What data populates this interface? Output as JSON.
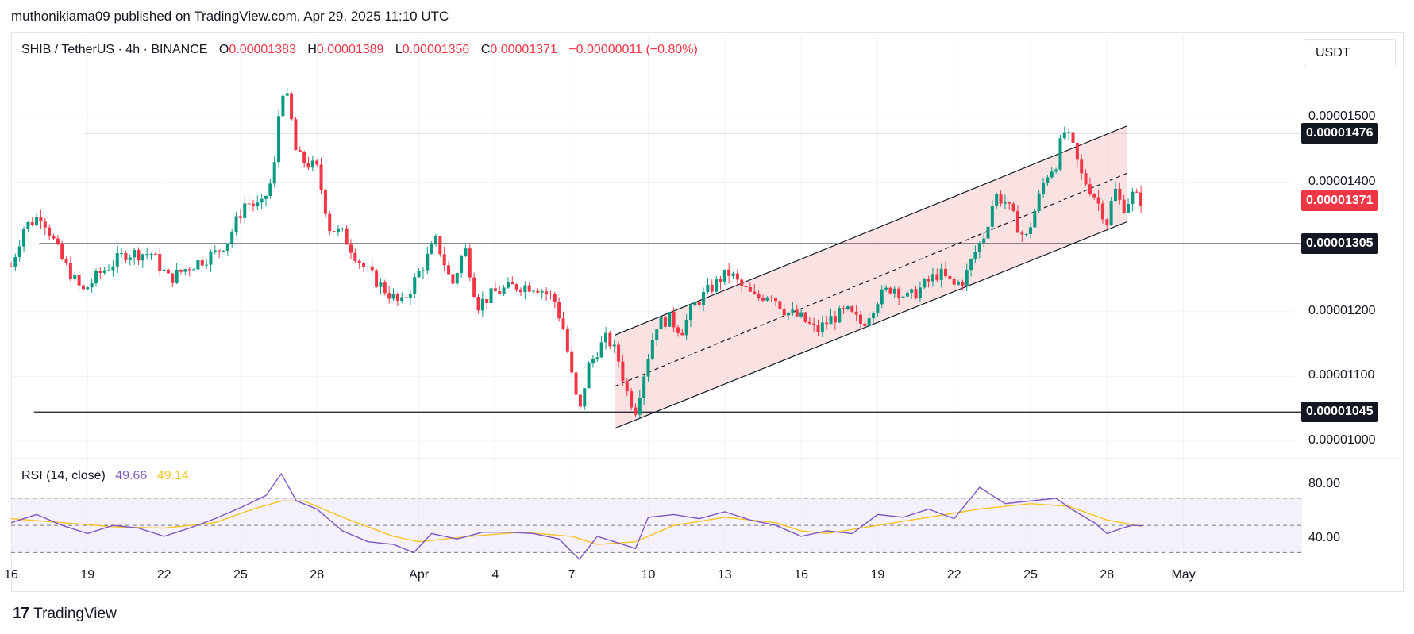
{
  "publisher": "muthonikiama09 published on TradingView.com, Apr 29, 2025 11:10 UTC",
  "legend": {
    "symbol": "SHIB / TetherUS · 4h · BINANCE",
    "open_key": "O",
    "open": "0.00001383",
    "high_key": "H",
    "high": "0.00001389",
    "low_key": "L",
    "low": "0.00001356",
    "close_key": "C",
    "close": "0.00001371",
    "change": "−0.00000011 (−0.80%)"
  },
  "currency": "USDT",
  "rsi_legend": {
    "label": "RSI (14, close)",
    "rsi": "49.66",
    "ma": "49.14"
  },
  "brand": {
    "logo": "17",
    "name": "TradingView"
  },
  "colors": {
    "up": "#089981",
    "down": "#f23645",
    "channel": "#f8d7d8",
    "rsi": "#7e57c2",
    "rsi_ma": "#f7c325",
    "rsi_band": "#ede7f6"
  },
  "chart_data": [
    {
      "type": "candlestick",
      "title": "SHIB / TetherUS · 4h · BINANCE",
      "x_tick_labels": [
        "16",
        "19",
        "22",
        "25",
        "28",
        "Apr",
        "4",
        "7",
        "10",
        "13",
        "16",
        "19",
        "22",
        "25",
        "28",
        "May"
      ],
      "x_tick_day_index": [
        0,
        3,
        6,
        9,
        12,
        16,
        19,
        22,
        25,
        28,
        31,
        34,
        37,
        40,
        43,
        46
      ],
      "y_ticks": [
        "0.00001000",
        "0.00001100",
        "0.00001200",
        "0.00001400",
        "0.00001500"
      ],
      "ylim": [
        9.8e-06,
        1.6e-05
      ],
      "price_tags": [
        {
          "label": "0.00001476",
          "value": 1.476e-05,
          "kind": "level"
        },
        {
          "label": "0.00001371",
          "value": 1.371e-05,
          "kind": "last"
        },
        {
          "label": "0.00001305",
          "value": 1.305e-05,
          "kind": "level"
        },
        {
          "label": "0.00001045",
          "value": 1.045e-05,
          "kind": "level"
        }
      ],
      "horizontal_levels": [
        {
          "value": 1.476e-05,
          "from_day": 2.8
        },
        {
          "value": 1.305e-05,
          "from_day": 1.1
        },
        {
          "value": 1.045e-05,
          "from_day": 0.9
        }
      ],
      "ascending_channel": {
        "from_day": 23.7,
        "to_day": 43.8,
        "upper": [
          1.164e-05,
          1.487e-05
        ],
        "middle": [
          1.085e-05,
          1.414e-05
        ],
        "lower": [
          1.02e-05,
          1.339e-05
        ]
      },
      "close_path": [
        [
          0,
          1.27e-05
        ],
        [
          0.5,
          1.33e-05
        ],
        [
          1.2,
          1.35e-05
        ],
        [
          2.0,
          1.28e-05
        ],
        [
          2.8,
          1.23e-05
        ],
        [
          3.5,
          1.26e-05
        ],
        [
          4.5,
          1.29e-05
        ],
        [
          5.5,
          1.29e-05
        ],
        [
          6.2,
          1.25e-05
        ],
        [
          7.0,
          1.27e-05
        ],
        [
          8.0,
          1.29e-05
        ],
        [
          8.5,
          1.31e-05
        ],
        [
          9.2,
          1.37e-05
        ],
        [
          9.8,
          1.36e-05
        ],
        [
          10.3,
          1.41e-05
        ],
        [
          10.6,
          1.55e-05
        ],
        [
          10.9,
          1.52e-05
        ],
        [
          11.2,
          1.44e-05
        ],
        [
          12.0,
          1.42e-05
        ],
        [
          12.5,
          1.33e-05
        ],
        [
          13.0,
          1.32e-05
        ],
        [
          13.8,
          1.27e-05
        ],
        [
          14.5,
          1.24e-05
        ],
        [
          15.3,
          1.21e-05
        ],
        [
          16.0,
          1.26e-05
        ],
        [
          16.7,
          1.31e-05
        ],
        [
          17.3,
          1.24e-05
        ],
        [
          17.8,
          1.3e-05
        ],
        [
          18.3,
          1.21e-05
        ],
        [
          19.0,
          1.23e-05
        ],
        [
          19.8,
          1.24e-05
        ],
        [
          20.6,
          1.24e-05
        ],
        [
          21.3,
          1.22e-05
        ],
        [
          21.7,
          1.17e-05
        ],
        [
          22.0,
          1.1e-05
        ],
        [
          22.3,
          1.04e-05
        ],
        [
          22.6,
          1.11e-05
        ],
        [
          23.0,
          1.14e-05
        ],
        [
          23.4,
          1.16e-05
        ],
        [
          23.8,
          1.13e-05
        ],
        [
          24.2,
          1.07e-05
        ],
        [
          24.5,
          1.05e-05
        ],
        [
          24.8,
          1.1e-05
        ],
        [
          25.3,
          1.18e-05
        ],
        [
          25.8,
          1.19e-05
        ],
        [
          26.3,
          1.17e-05
        ],
        [
          26.8,
          1.21e-05
        ],
        [
          27.3,
          1.23e-05
        ],
        [
          27.8,
          1.25e-05
        ],
        [
          28.2,
          1.26e-05
        ],
        [
          28.6,
          1.24e-05
        ],
        [
          29.2,
          1.22e-05
        ],
        [
          29.8,
          1.23e-05
        ],
        [
          30.4,
          1.2e-05
        ],
        [
          31.0,
          1.19e-05
        ],
        [
          31.6,
          1.17e-05
        ],
        [
          32.2,
          1.19e-05
        ],
        [
          32.8,
          1.2e-05
        ],
        [
          33.4,
          1.18e-05
        ],
        [
          34.0,
          1.22e-05
        ],
        [
          34.6,
          1.24e-05
        ],
        [
          35.2,
          1.22e-05
        ],
        [
          35.8,
          1.24e-05
        ],
        [
          36.4,
          1.26e-05
        ],
        [
          37.0,
          1.24e-05
        ],
        [
          37.4,
          1.25e-05
        ],
        [
          37.8,
          1.29e-05
        ],
        [
          38.2,
          1.32e-05
        ],
        [
          38.6,
          1.38e-05
        ],
        [
          39.0,
          1.37e-05
        ],
        [
          39.4,
          1.34e-05
        ],
        [
          39.8,
          1.31e-05
        ],
        [
          40.2,
          1.36e-05
        ],
        [
          40.6,
          1.41e-05
        ],
        [
          41.0,
          1.43e-05
        ],
        [
          41.3,
          1.48e-05
        ],
        [
          41.6,
          1.46e-05
        ],
        [
          42.0,
          1.41e-05
        ],
        [
          42.5,
          1.38e-05
        ],
        [
          43.0,
          1.34e-05
        ],
        [
          43.3,
          1.39e-05
        ],
        [
          43.6,
          1.36e-05
        ],
        [
          44.0,
          1.38e-05
        ],
        [
          44.4,
          1.37e-05
        ]
      ]
    },
    {
      "type": "line",
      "title": "RSI (14, close)",
      "y_ticks": [
        "40.00",
        "80.00"
      ],
      "ylim": [
        25,
        95
      ],
      "bands": {
        "upper": 70,
        "middle": 50,
        "lower": 30
      },
      "series": [
        {
          "name": "RSI",
          "values": [
            [
              0,
              52
            ],
            [
              1.0,
              58
            ],
            [
              2.0,
              50
            ],
            [
              3.0,
              44
            ],
            [
              4.0,
              50
            ],
            [
              5.0,
              48
            ],
            [
              6.0,
              42
            ],
            [
              7.0,
              48
            ],
            [
              8.0,
              55
            ],
            [
              9.0,
              63
            ],
            [
              10.0,
              72
            ],
            [
              10.6,
              88
            ],
            [
              11.2,
              68
            ],
            [
              12.0,
              62
            ],
            [
              13.0,
              46
            ],
            [
              14.0,
              38
            ],
            [
              15.0,
              36
            ],
            [
              15.8,
              30
            ],
            [
              16.5,
              44
            ],
            [
              17.5,
              40
            ],
            [
              18.5,
              45
            ],
            [
              19.5,
              45
            ],
            [
              20.5,
              44
            ],
            [
              21.5,
              40
            ],
            [
              22.3,
              25
            ],
            [
              23.0,
              42
            ],
            [
              24.0,
              36
            ],
            [
              24.5,
              33
            ],
            [
              25.0,
              56
            ],
            [
              26.0,
              58
            ],
            [
              27.0,
              55
            ],
            [
              28.0,
              60
            ],
            [
              29.0,
              54
            ],
            [
              30.0,
              50
            ],
            [
              31.0,
              42
            ],
            [
              32.0,
              46
            ],
            [
              33.0,
              44
            ],
            [
              34.0,
              58
            ],
            [
              35.0,
              56
            ],
            [
              36.0,
              62
            ],
            [
              37.0,
              55
            ],
            [
              38.0,
              78
            ],
            [
              39.0,
              66
            ],
            [
              40.0,
              68
            ],
            [
              41.0,
              70
            ],
            [
              41.6,
              62
            ],
            [
              42.5,
              52
            ],
            [
              43.0,
              44
            ],
            [
              43.6,
              48
            ],
            [
              44.0,
              50
            ],
            [
              44.4,
              49.66
            ]
          ]
        },
        {
          "name": "RSI MA",
          "values": [
            [
              0,
              55
            ],
            [
              2.0,
              52
            ],
            [
              4.0,
              49
            ],
            [
              6.0,
              48
            ],
            [
              8.0,
              52
            ],
            [
              9.5,
              62
            ],
            [
              10.6,
              68
            ],
            [
              11.5,
              68
            ],
            [
              13.0,
              56
            ],
            [
              15.0,
              42
            ],
            [
              16.0,
              38
            ],
            [
              18.0,
              42
            ],
            [
              20.0,
              45
            ],
            [
              22.0,
              42
            ],
            [
              23.0,
              36
            ],
            [
              24.5,
              38
            ],
            [
              26.0,
              50
            ],
            [
              28.0,
              56
            ],
            [
              30.0,
              52
            ],
            [
              31.0,
              46
            ],
            [
              32.0,
              44
            ],
            [
              34.0,
              50
            ],
            [
              36.0,
              56
            ],
            [
              38.0,
              62
            ],
            [
              40.0,
              66
            ],
            [
              41.5,
              64
            ],
            [
              43.0,
              54
            ],
            [
              44.4,
              49.14
            ]
          ]
        }
      ]
    }
  ]
}
